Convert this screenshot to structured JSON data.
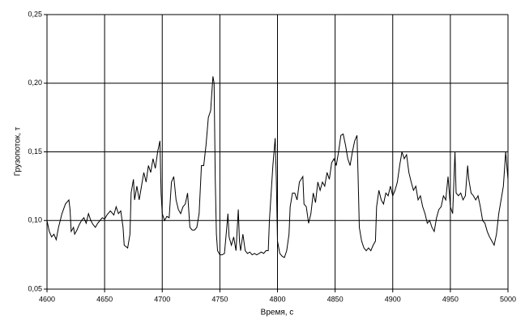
{
  "chart_data": {
    "type": "line",
    "x_label": "Время, с",
    "y_label": "Грузопоток, т",
    "xlim": [
      4600,
      5000
    ],
    "xticks": [
      4600,
      4650,
      4700,
      4750,
      4800,
      4850,
      4900,
      4950,
      5000
    ],
    "ylim": [
      0.05,
      0.25
    ],
    "yticks": [
      {
        "value": 0.05,
        "label": "0,05"
      },
      {
        "value": 0.1,
        "label": "0,10"
      },
      {
        "value": 0.15,
        "label": "0,15"
      },
      {
        "value": 0.2,
        "label": "0,20"
      },
      {
        "value": 0.25,
        "label": "0,25"
      }
    ],
    "grid": true,
    "color": "#000000",
    "x": [
      4600,
      4602,
      4604,
      4606,
      4608,
      4610,
      4613,
      4616,
      4619,
      4620,
      4621,
      4623,
      4624,
      4626,
      4628,
      4630,
      4632,
      4634,
      4636,
      4638,
      4640,
      4642,
      4644,
      4646,
      4648,
      4650,
      4652,
      4655,
      4658,
      4660,
      4662,
      4664,
      4666,
      4667,
      4670,
      4672,
      4673,
      4675,
      4676,
      4678,
      4680,
      4682,
      4684,
      4686,
      4688,
      4690,
      4692,
      4694,
      4696,
      4698,
      4699,
      4700,
      4702,
      4704,
      4706,
      4708,
      4710,
      4712,
      4714,
      4716,
      4718,
      4720,
      4722,
      4724,
      4726,
      4728,
      4730,
      4732,
      4734,
      4736,
      4738,
      4740,
      4742,
      4744,
      4745,
      4746,
      4747,
      4748,
      4750,
      4752,
      4754,
      4756,
      4757,
      4758,
      4760,
      4762,
      4764,
      4766,
      4767,
      4768,
      4770,
      4772,
      4774,
      4776,
      4778,
      4780,
      4782,
      4784,
      4786,
      4788,
      4790,
      4792,
      4793,
      4796,
      4798,
      4799,
      4800,
      4802,
      4804,
      4806,
      4808,
      4810,
      4811,
      4813,
      4815,
      4817,
      4819,
      4822,
      4823,
      4825,
      4827,
      4829,
      4831,
      4833,
      4835,
      4837,
      4839,
      4841,
      4843,
      4845,
      4847,
      4849,
      4851,
      4853,
      4855,
      4857,
      4859,
      4861,
      4863,
      4865,
      4867,
      4869,
      4870,
      4871,
      4873,
      4875,
      4877,
      4879,
      4881,
      4883,
      4885,
      4886,
      4888,
      4890,
      4892,
      4894,
      4896,
      4898,
      4900,
      4902,
      4904,
      4906,
      4908,
      4910,
      4912,
      4914,
      4916,
      4918,
      4920,
      4922,
      4924,
      4926,
      4928,
      4930,
      4932,
      4934,
      4936,
      4938,
      4940,
      4942,
      4944,
      4946,
      4948,
      4950,
      4952,
      4954,
      4955,
      4957,
      4959,
      4961,
      4963,
      4965,
      4966,
      4968,
      4970,
      4972,
      4974,
      4976,
      4978,
      4980,
      4982,
      4984,
      4986,
      4988,
      4990,
      4992,
      4994,
      4996,
      4998,
      5000
    ],
    "values": [
      0.1,
      0.092,
      0.088,
      0.09,
      0.086,
      0.095,
      0.105,
      0.112,
      0.115,
      0.108,
      0.092,
      0.095,
      0.09,
      0.093,
      0.097,
      0.1,
      0.102,
      0.098,
      0.105,
      0.1,
      0.097,
      0.095,
      0.098,
      0.1,
      0.102,
      0.101,
      0.104,
      0.107,
      0.104,
      0.11,
      0.105,
      0.107,
      0.095,
      0.082,
      0.08,
      0.09,
      0.12,
      0.13,
      0.115,
      0.125,
      0.115,
      0.125,
      0.135,
      0.128,
      0.14,
      0.135,
      0.145,
      0.138,
      0.15,
      0.158,
      0.12,
      0.105,
      0.1,
      0.103,
      0.102,
      0.128,
      0.132,
      0.115,
      0.108,
      0.105,
      0.11,
      0.112,
      0.12,
      0.095,
      0.093,
      0.093,
      0.095,
      0.105,
      0.14,
      0.14,
      0.155,
      0.175,
      0.18,
      0.205,
      0.2,
      0.13,
      0.09,
      0.078,
      0.075,
      0.075,
      0.076,
      0.095,
      0.105,
      0.088,
      0.082,
      0.088,
      0.078,
      0.108,
      0.085,
      0.078,
      0.09,
      0.078,
      0.076,
      0.077,
      0.075,
      0.076,
      0.075,
      0.076,
      0.077,
      0.076,
      0.078,
      0.078,
      0.1,
      0.14,
      0.16,
      0.13,
      0.085,
      0.076,
      0.074,
      0.073,
      0.078,
      0.09,
      0.11,
      0.12,
      0.12,
      0.115,
      0.128,
      0.132,
      0.112,
      0.11,
      0.098,
      0.105,
      0.12,
      0.113,
      0.128,
      0.122,
      0.128,
      0.125,
      0.135,
      0.13,
      0.142,
      0.145,
      0.14,
      0.15,
      0.162,
      0.163,
      0.155,
      0.145,
      0.14,
      0.15,
      0.158,
      0.162,
      0.13,
      0.095,
      0.085,
      0.08,
      0.078,
      0.08,
      0.078,
      0.082,
      0.085,
      0.11,
      0.122,
      0.115,
      0.112,
      0.12,
      0.118,
      0.125,
      0.118,
      0.122,
      0.128,
      0.14,
      0.15,
      0.145,
      0.148,
      0.135,
      0.128,
      0.122,
      0.125,
      0.115,
      0.118,
      0.11,
      0.105,
      0.098,
      0.1,
      0.095,
      0.092,
      0.102,
      0.108,
      0.11,
      0.118,
      0.115,
      0.132,
      0.11,
      0.105,
      0.15,
      0.12,
      0.118,
      0.12,
      0.115,
      0.118,
      0.14,
      0.13,
      0.12,
      0.118,
      0.115,
      0.118,
      0.11,
      0.1,
      0.098,
      0.092,
      0.088,
      0.085,
      0.082,
      0.09,
      0.105,
      0.115,
      0.125,
      0.15,
      0.13
    ]
  }
}
